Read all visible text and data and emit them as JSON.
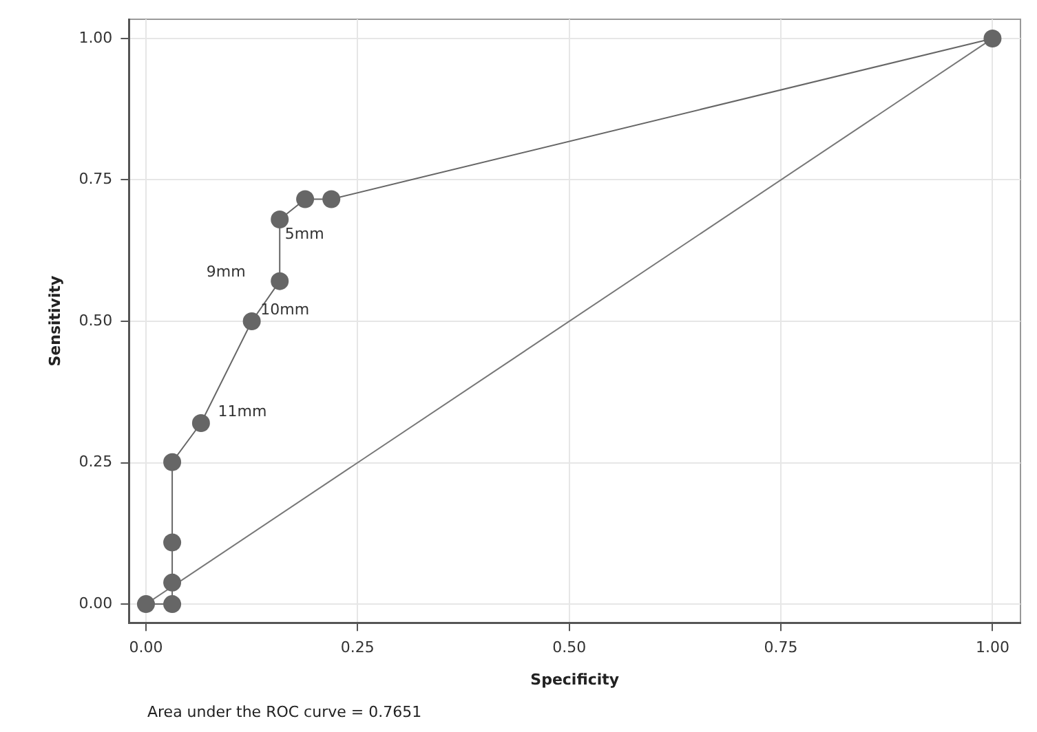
{
  "chart_data": {
    "type": "line",
    "xlabel": "Specificity",
    "ylabel": "Sensitivity",
    "xlim": [
      -0.02,
      1.033
    ],
    "ylim": [
      -0.033,
      1.034
    ],
    "xticks": [
      {
        "value": 0,
        "label": "0.00"
      },
      {
        "value": 0.25,
        "label": "0.25"
      },
      {
        "value": 0.5,
        "label": "0.50"
      },
      {
        "value": 0.75,
        "label": "0.75"
      },
      {
        "value": 1,
        "label": "1.00"
      }
    ],
    "yticks": [
      {
        "value": 0,
        "label": "0.00"
      },
      {
        "value": 0.25,
        "label": "0.25"
      },
      {
        "value": 0.5,
        "label": "0.50"
      },
      {
        "value": 0.75,
        "label": "0.75"
      },
      {
        "value": 1,
        "label": "1.00"
      }
    ],
    "grid": true,
    "legend": false,
    "series": [
      {
        "color": "#666666",
        "marker": "circle",
        "x": [
          0,
          0.031,
          0.031,
          0.031,
          0.031,
          0.065,
          0.125,
          0.158,
          0.158,
          0.188,
          0.219,
          1
        ],
        "values": [
          0,
          0,
          0.038,
          0.109,
          0.251,
          0.32,
          0.5,
          0.571,
          0.68,
          0.716,
          0.716,
          1
        ]
      },
      {
        "color": "#777777",
        "marker": "none",
        "x": [
          0,
          1
        ],
        "values": [
          0,
          1
        ]
      }
    ],
    "annotations": [
      {
        "text": "5mm",
        "x": 0.158,
        "y": 0.68
      },
      {
        "text": "9mm",
        "x": 0.158,
        "y": 0.571
      },
      {
        "text": "10mm",
        "x": 0.125,
        "y": 0.5
      },
      {
        "text": "11mm",
        "x": 0.065,
        "y": 0.32
      },
      "Area under the ROC curve = 0.7651"
    ]
  }
}
